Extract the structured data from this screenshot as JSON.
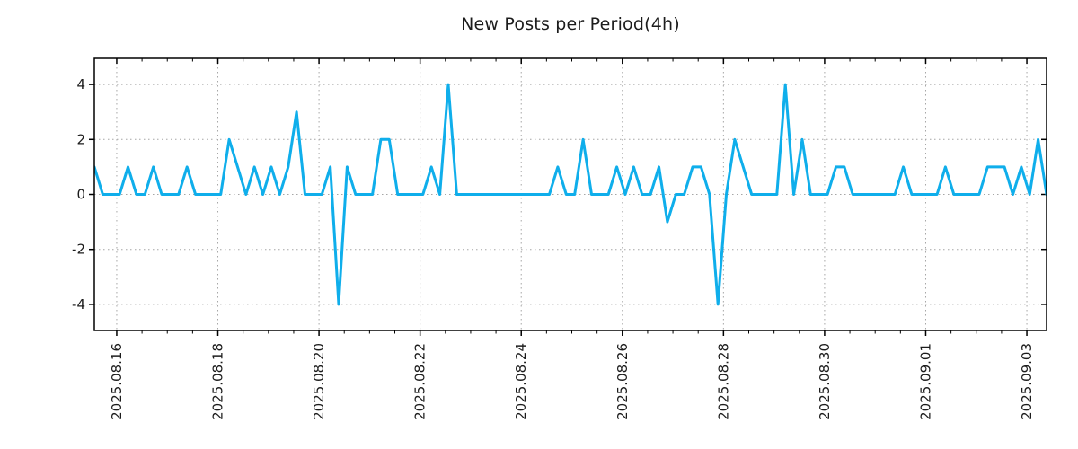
{
  "title": "New Posts per Period(4h)",
  "colors": {
    "line": "#0faeeb",
    "grid": "#a6a6a6",
    "axis": "#000000",
    "text": "#1c1c1c",
    "background": "#ffffff"
  },
  "chart_data": {
    "type": "line",
    "title": "New Posts per Period(4h)",
    "xlabel": "",
    "ylabel": "",
    "grid": "dotted",
    "legend": "none",
    "period_hours": 4,
    "y_ticks": [
      -4,
      -2,
      0,
      2,
      4
    ],
    "ylim": [
      -4.95,
      4.95
    ],
    "x_tick_labels": [
      "2025.08.16",
      "2025.08.18",
      "2025.08.20",
      "2025.08.22",
      "2025.08.24",
      "2025.08.26",
      "2025.08.28",
      "2025.08.30",
      "2025.09.01",
      "2025.09.03"
    ],
    "x_tick_first_index": 2.66,
    "x_tick_step_indices": 12,
    "x_minor_step_indices": 3,
    "values": [
      1,
      0,
      0,
      0,
      1,
      0,
      0,
      1,
      0,
      0,
      0,
      1,
      0,
      0,
      0,
      0,
      2,
      1,
      0,
      1,
      0,
      1,
      0,
      1,
      3,
      0,
      0,
      0,
      1,
      -4,
      1,
      0,
      0,
      0,
      2,
      2,
      0,
      0,
      0,
      0,
      1,
      0,
      4,
      0,
      0,
      0,
      0,
      0,
      0,
      0,
      0,
      0,
      0,
      0,
      0,
      1,
      0,
      0,
      2,
      0,
      0,
      0,
      1,
      0,
      1,
      0,
      0,
      1,
      -1,
      0,
      0,
      1,
      1,
      0,
      -4,
      0,
      2,
      1,
      0,
      0,
      0,
      0,
      4,
      0,
      2,
      0,
      0,
      0,
      1,
      1,
      0,
      0,
      0,
      0,
      0,
      0,
      1,
      0,
      0,
      0,
      0,
      1,
      0,
      0,
      0,
      0,
      1,
      1,
      1,
      0,
      1,
      0,
      2,
      0
    ]
  }
}
